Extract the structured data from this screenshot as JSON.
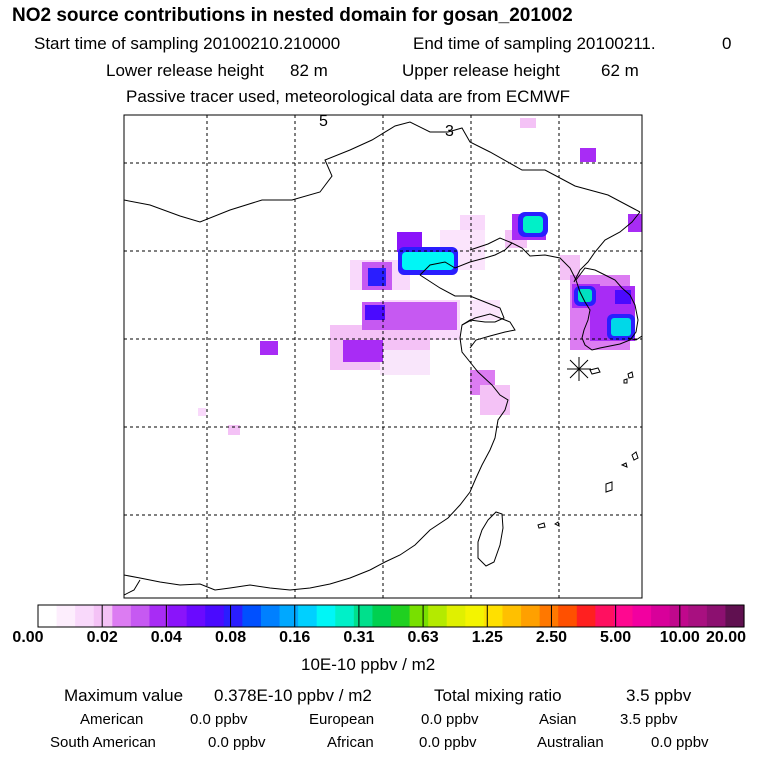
{
  "header": {
    "title": "NO2 source contributions in nested domain for gosan_201002",
    "start_label": "Start time of sampling 20100210.210000",
    "end_label": "End time of sampling 20100211.",
    "end_value": "0",
    "lower_label": "Lower release height",
    "lower_value": "82 m",
    "upper_label": "Upper release height",
    "upper_value": "62 m",
    "tracer_note": "Passive tracer used, meteorological data are from ECMWF"
  },
  "map": {
    "labels": [
      "5",
      "3"
    ],
    "receptor_marker": "star-icon"
  },
  "colorbar": {
    "ticks": [
      "0.00",
      "0.02",
      "0.04",
      "0.08",
      "0.16",
      "0.31",
      "0.63",
      "1.25",
      "2.50",
      "5.00",
      "10.00",
      "20.00"
    ],
    "unit": "10E-10 ppbv / m2",
    "colors": [
      "#ffffff",
      "#fdeefd",
      "#f9d9fb",
      "#f4c2f6",
      "#dc7cf2",
      "#c659f2",
      "#a82cf5",
      "#8a14fa",
      "#6a0aff",
      "#4a0aff",
      "#2a1eff",
      "#0050ff",
      "#0080ff",
      "#00a8ff",
      "#00d0ff",
      "#00f6f6",
      "#00f0c8",
      "#00e08c",
      "#00d050",
      "#20d020",
      "#78e000",
      "#b4ea00",
      "#e0f000",
      "#f4f400",
      "#ffe000",
      "#ffc000",
      "#ffa000",
      "#ff7800",
      "#ff5000",
      "#ff2020",
      "#ff1060",
      "#ff0890",
      "#f200a0",
      "#d8009a",
      "#c0088c",
      "#a81080",
      "#8c1070",
      "#601050"
    ]
  },
  "footer": {
    "max_label": "Maximum value",
    "max_value": "0.378E-10 ppbv / m2",
    "total_label": "Total mixing ratio",
    "total_value": "3.5 ppbv",
    "regions": [
      {
        "name": "American",
        "value": "0.0 ppbv"
      },
      {
        "name": "European",
        "value": "0.0 ppbv"
      },
      {
        "name": "Asian",
        "value": "3.5 ppbv"
      },
      {
        "name": "South American",
        "value": "0.0 ppbv"
      },
      {
        "name": "African",
        "value": "0.0 ppbv"
      },
      {
        "name": "Australian",
        "value": "0.0 ppbv"
      }
    ]
  }
}
